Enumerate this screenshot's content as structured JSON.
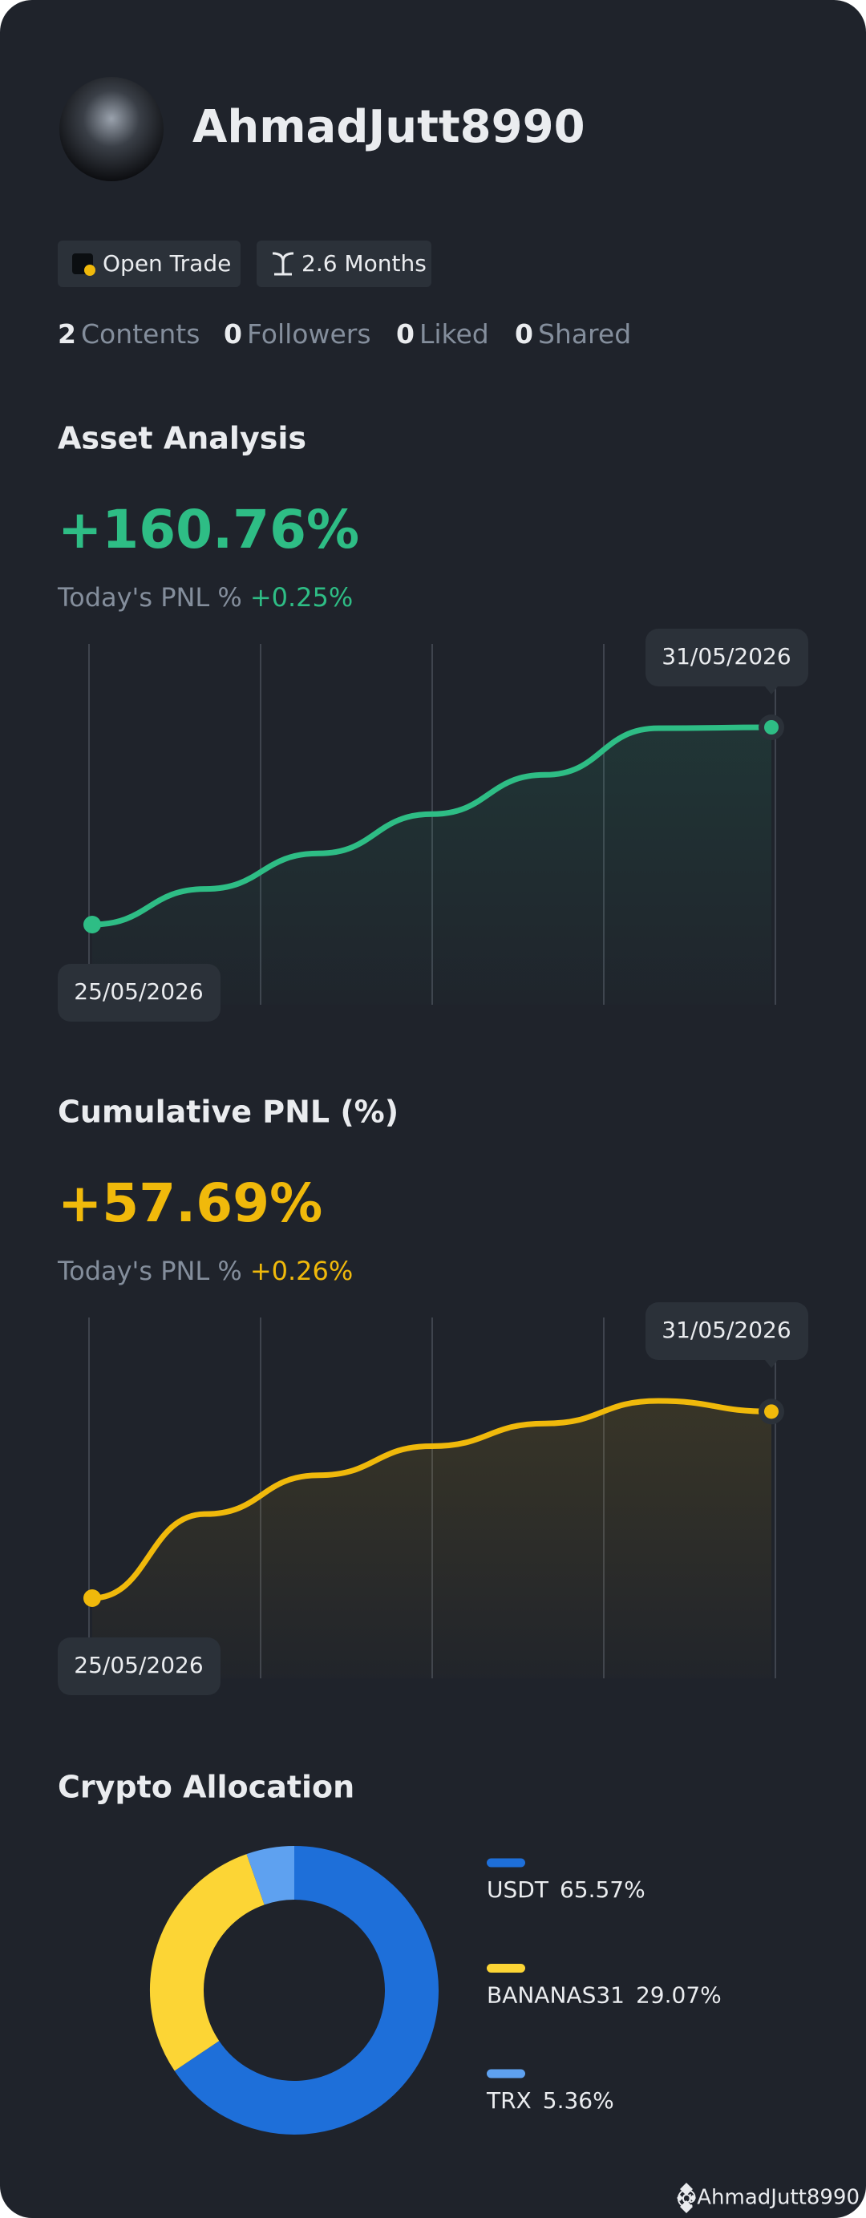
{
  "profile": {
    "username": "AhmadJutt8990",
    "badges": [
      "Open Trade",
      "2.6 Months"
    ],
    "stats": [
      {
        "value": 2,
        "label": "Contents"
      },
      {
        "value": 0,
        "label": "Followers"
      },
      {
        "value": 0,
        "label": "Liked"
      },
      {
        "value": 0,
        "label": "Shared"
      }
    ]
  },
  "chart_data": [
    {
      "type": "line",
      "title": "Asset Analysis",
      "headline": "+160.76%",
      "today_label": "Today's PNL %",
      "today_value": "+0.25%",
      "categories": [
        "25/05/2026",
        null,
        null,
        null,
        null,
        null,
        "31/05/2026"
      ],
      "values": [
        0,
        29,
        58,
        90,
        122,
        160,
        160.76
      ],
      "color": "#2ebd85",
      "grid": true
    },
    {
      "type": "line",
      "title": "Cumulative PNL (%)",
      "headline": "+57.69%",
      "today_label": "Today's PNL %",
      "today_value": "+0.26%",
      "categories": [
        "25/05/2026",
        null,
        null,
        null,
        null,
        null,
        "31/05/2026"
      ],
      "values": [
        0,
        26,
        38,
        47,
        54,
        61,
        57.69
      ],
      "color": "#f0b90b",
      "grid": true
    },
    {
      "type": "pie",
      "title": "Crypto Allocation",
      "donut": true,
      "categories": [
        "USDT",
        "BANANAS31",
        "TRX"
      ],
      "values": [
        65.57,
        29.07,
        5.36
      ],
      "value_labels": [
        "65.57%",
        "29.07%",
        "5.36%"
      ],
      "colors": [
        "#1e6fd9",
        "#fcd535",
        "#5ea1f0"
      ]
    }
  ],
  "watermark": "@AhmadJutt8990"
}
